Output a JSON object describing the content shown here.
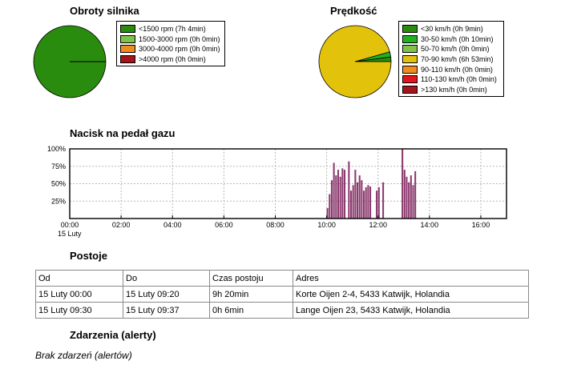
{
  "engine": {
    "title": "Obroty silnika",
    "legend": [
      {
        "label": "<1500 rpm (7h 4min)",
        "color": "#2a8c0e"
      },
      {
        "label": "1500-3000 rpm (0h 0min)",
        "color": "#7fc24a"
      },
      {
        "label": "3000-4000 rpm (0h 0min)",
        "color": "#f08c1e"
      },
      {
        "label": ">4000 rpm (0h 0min)",
        "color": "#a4151b"
      }
    ]
  },
  "speed": {
    "title": "Prędkość",
    "legend": [
      {
        "label": "<30 km/h (0h 9min)",
        "color": "#2a8c0e"
      },
      {
        "label": "30-50 km/h (0h 10min)",
        "color": "#20b020"
      },
      {
        "label": "50-70 km/h (0h 0min)",
        "color": "#7fc24a"
      },
      {
        "label": "70-90 km/h (6h 53min)",
        "color": "#e3c20c"
      },
      {
        "label": "90-110 km/h (0h 0min)",
        "color": "#f08c1e"
      },
      {
        "label": "110-130 km/h (0h 0min)",
        "color": "#e4141c"
      },
      {
        "label": ">130 km/h (0h 0min)",
        "color": "#a4151b"
      }
    ]
  },
  "throttle": {
    "title": "Nacisk na pedał gazu",
    "date_label": "15 Luty"
  },
  "chart_data": [
    {
      "type": "pie",
      "title": "Obroty silnika",
      "categories": [
        "<1500 rpm",
        "1500-3000 rpm",
        "3000-4000 rpm",
        ">4000 rpm"
      ],
      "values": [
        424,
        0,
        0,
        0
      ]
    },
    {
      "type": "pie",
      "title": "Prędkość",
      "categories": [
        "<30 km/h",
        "30-50 km/h",
        "50-70 km/h",
        "70-90 km/h",
        "90-110 km/h",
        "110-130 km/h",
        ">130 km/h"
      ],
      "values": [
        9,
        10,
        0,
        413,
        0,
        0,
        0
      ]
    },
    {
      "type": "bar",
      "title": "Nacisk na pedał gazu",
      "xlim": [
        "00:00",
        "17:00"
      ],
      "x_ticks": [
        "00:00",
        "02:00",
        "04:00",
        "06:00",
        "08:00",
        "10:00",
        "12:00",
        "14:00",
        "16:00"
      ],
      "y_ticks": [
        "25%",
        "50%",
        "75%",
        "100%"
      ],
      "ylim": [
        0,
        100
      ],
      "grid": true,
      "bar_color": "#8b3a6e",
      "bars": [
        {
          "x": "10:00",
          "y": 15
        },
        {
          "x": "10:05",
          "y": 35
        },
        {
          "x": "10:10",
          "y": 55
        },
        {
          "x": "10:15",
          "y": 80
        },
        {
          "x": "10:20",
          "y": 62
        },
        {
          "x": "10:25",
          "y": 70
        },
        {
          "x": "10:30",
          "y": 60
        },
        {
          "x": "10:35",
          "y": 72
        },
        {
          "x": "10:40",
          "y": 70
        },
        {
          "x": "10:50",
          "y": 82
        },
        {
          "x": "10:55",
          "y": 40
        },
        {
          "x": "11:00",
          "y": 48
        },
        {
          "x": "11:05",
          "y": 70
        },
        {
          "x": "11:10",
          "y": 52
        },
        {
          "x": "11:15",
          "y": 62
        },
        {
          "x": "11:20",
          "y": 55
        },
        {
          "x": "11:25",
          "y": 40
        },
        {
          "x": "11:30",
          "y": 45
        },
        {
          "x": "11:35",
          "y": 48
        },
        {
          "x": "11:40",
          "y": 46
        },
        {
          "x": "11:55",
          "y": 40
        },
        {
          "x": "12:00",
          "y": 45
        },
        {
          "x": "12:10",
          "y": 52
        },
        {
          "x": "12:55",
          "y": 100
        },
        {
          "x": "13:00",
          "y": 70
        },
        {
          "x": "13:05",
          "y": 60
        },
        {
          "x": "13:10",
          "y": 52
        },
        {
          "x": "13:15",
          "y": 62
        },
        {
          "x": "13:20",
          "y": 48
        },
        {
          "x": "13:25",
          "y": 68
        }
      ]
    }
  ],
  "stops": {
    "title": "Postoje",
    "headers": [
      "Od",
      "Do",
      "Czas postoju",
      "Adres"
    ],
    "rows": [
      [
        "15 Luty 00:00",
        "15 Luty 09:20",
        "9h 20min",
        "Korte Oijen 2-4, 5433 Katwijk, Holandia"
      ],
      [
        "15 Luty 09:30",
        "15 Luty 09:37",
        "0h 6min",
        "Lange Oijen 23, 5433 Katwijk, Holandia"
      ]
    ]
  },
  "events": {
    "title": "Zdarzenia (alerty)",
    "empty_text": "Brak zdarzeń (alertów)"
  }
}
